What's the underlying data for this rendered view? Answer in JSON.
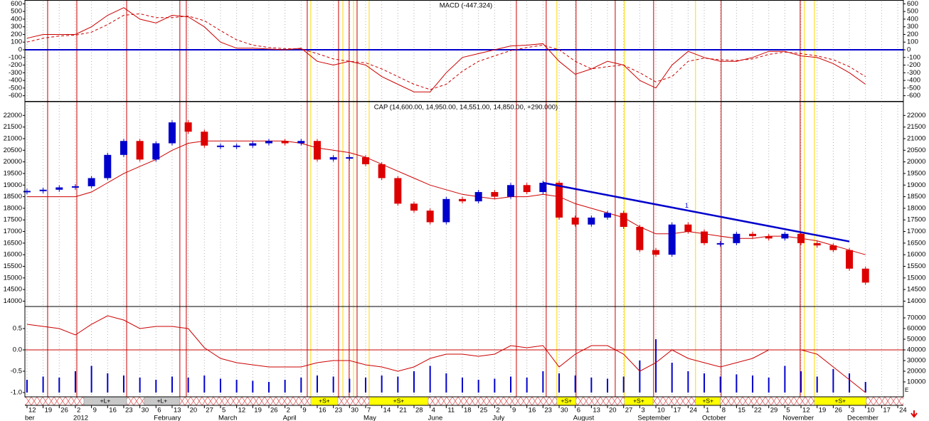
{
  "chart_data": [
    {
      "type": "line",
      "title": "MACD (-447.324)",
      "x": [
        0,
        1,
        2,
        3,
        4,
        5,
        6,
        7,
        8,
        9,
        10,
        11,
        12,
        13,
        14,
        15,
        16,
        17,
        18,
        19,
        20,
        21,
        22,
        23,
        24,
        25,
        26,
        27,
        28,
        29,
        30,
        31,
        32,
        33,
        34,
        35,
        36,
        37,
        38,
        39,
        40,
        41,
        42,
        43,
        44,
        45,
        46,
        47,
        48,
        49,
        50,
        51,
        52
      ],
      "series": [
        {
          "color": "#cc0000",
          "dash": false,
          "values": [
            150,
            200,
            200,
            200,
            300,
            450,
            550,
            400,
            350,
            450,
            430,
            300,
            100,
            20,
            20,
            10,
            0,
            20,
            -150,
            -200,
            -150,
            -200,
            -350,
            -450,
            -550,
            -550,
            -300,
            -100,
            -50,
            0,
            50,
            60,
            80,
            -150,
            -320,
            -250,
            -150,
            -200,
            -400,
            -500,
            -200,
            -20,
            -100,
            -150,
            -150,
            -100,
            -20,
            -20,
            -80,
            -100,
            -180,
            -300,
            -450
          ]
        },
        {
          "color": "#cc0000",
          "dash": true,
          "values": [
            100,
            150,
            180,
            190,
            230,
            330,
            450,
            470,
            420,
            420,
            440,
            380,
            250,
            130,
            60,
            30,
            15,
            10,
            -50,
            -120,
            -150,
            -170,
            -250,
            -350,
            -450,
            -520,
            -450,
            -280,
            -150,
            -80,
            -10,
            30,
            60,
            0,
            -150,
            -250,
            -220,
            -200,
            -300,
            -420,
            -350,
            -150,
            -110,
            -130,
            -140,
            -120,
            -60,
            -30,
            -50,
            -80,
            -130,
            -220,
            -350
          ]
        }
      ],
      "reference": {
        "value": 0,
        "color": "#0000cc"
      },
      "xlim": [
        -0.13,
        54.35
      ],
      "ylim": [
        -650,
        650
      ],
      "yticks": [
        -600,
        -500,
        -400,
        -300,
        -200,
        -100,
        0,
        100,
        200,
        300,
        400,
        500,
        600
      ]
    },
    {
      "type": "candlestick",
      "title": "CAP (14,600.00, 14,950.00, 14,551.00, 14,850.00, +290.000)",
      "x": [
        0,
        1,
        2,
        3,
        4,
        5,
        6,
        7,
        8,
        9,
        10,
        11,
        12,
        13,
        14,
        15,
        16,
        17,
        18,
        19,
        20,
        21,
        22,
        23,
        24,
        25,
        26,
        27,
        28,
        29,
        30,
        31,
        32,
        33,
        34,
        35,
        36,
        37,
        38,
        39,
        40,
        41,
        42,
        43,
        44,
        45,
        46,
        47,
        48,
        49,
        50,
        51,
        52
      ],
      "values": [
        18750,
        18800,
        18900,
        18950,
        19300,
        20300,
        20900,
        20100,
        20800,
        21700,
        21300,
        20700,
        20700,
        20700,
        20800,
        20900,
        20800,
        20900,
        20100,
        20200,
        20200,
        19900,
        19300,
        18200,
        17900,
        17400,
        18400,
        18300,
        18700,
        18500,
        19000,
        18700,
        19100,
        17600,
        17300,
        17600,
        17800,
        17200,
        16200,
        16000,
        17300,
        17000,
        16500,
        16500,
        16900,
        16800,
        16700,
        16900,
        16500,
        16400,
        16200,
        15400,
        14800
      ],
      "up_color": "#0000cc",
      "down_color": "#dd0000",
      "series": [
        {
          "color": "#cc0000",
          "values": [
            18500,
            18500,
            18500,
            18500,
            18700,
            19100,
            19500,
            19800,
            20100,
            20500,
            20800,
            20900,
            20900,
            20900,
            20900,
            20900,
            20900,
            20800,
            20600,
            20500,
            20400,
            20200,
            19900,
            19600,
            19300,
            19000,
            18800,
            18600,
            18500,
            18400,
            18500,
            18500,
            18600,
            18500,
            18200,
            18000,
            17800,
            17600,
            17200,
            16900,
            16900,
            17000,
            16900,
            16800,
            16700,
            16700,
            16800,
            16800,
            16700,
            16600,
            16400,
            16200,
            16000
          ]
        }
      ],
      "trendline": {
        "color": "#0000cc",
        "x": [
          32,
          51
        ],
        "values": [
          19100,
          16570
        ]
      },
      "annotations": [
        {
          "text": "1",
          "x": 40.8,
          "y": 18100
        }
      ],
      "xlim": [
        -0.13,
        54.35
      ],
      "ylim": [
        13800,
        22500
      ],
      "yticks": [
        14000,
        14500,
        15000,
        15500,
        16000,
        16500,
        17000,
        17500,
        18000,
        18500,
        19000,
        19500,
        20000,
        20500,
        21000,
        21500,
        22000
      ]
    },
    {
      "type": "line",
      "x": [
        0,
        1,
        2,
        3,
        4,
        5,
        6,
        7,
        8,
        9,
        10,
        11,
        12,
        13,
        14,
        15,
        16,
        17,
        18,
        19,
        20,
        21,
        22,
        23,
        24,
        25,
        26,
        27,
        28,
        29,
        30,
        31,
        32,
        33,
        34,
        35,
        36,
        37,
        38,
        39,
        40,
        41,
        42,
        43,
        44,
        45,
        46,
        47,
        48,
        49,
        50,
        51,
        52
      ],
      "series": [
        {
          "color": "#0000cc",
          "kind": "bar",
          "axis": "y2",
          "values": [
            12000,
            15000,
            14000,
            20000,
            25000,
            18000,
            16000,
            14000,
            12000,
            15000,
            14000,
            16000,
            13000,
            12000,
            11000,
            10000,
            12000,
            14000,
            16000,
            15000,
            13000,
            14000,
            16000,
            15000,
            20000,
            25000,
            18000,
            14000,
            12000,
            13000,
            15000,
            14000,
            20000,
            18000,
            16000,
            14000,
            13000,
            15000,
            30000,
            50000,
            28000,
            20000,
            18000,
            15000,
            17000,
            16000,
            14000,
            25000,
            20000,
            15000,
            22000,
            18000,
            10000
          ]
        },
        {
          "color": "#cc0000",
          "kind": "line",
          "values": [
            0.6,
            0.55,
            0.5,
            0.35,
            0.6,
            0.8,
            0.7,
            0.5,
            0.55,
            0.55,
            0.5,
            0.05,
            -0.2,
            -0.3,
            -0.35,
            -0.4,
            -0.4,
            -0.4,
            -0.3,
            -0.25,
            -0.25,
            -0.35,
            -0.4,
            -0.5,
            -0.4,
            -0.2,
            -0.1,
            -0.1,
            -0.15,
            -0.1,
            0.1,
            0.05,
            0.1,
            -0.4,
            -0.1,
            0.1,
            0.1,
            -0.1,
            -0.5,
            -0.3,
            0,
            -0.2,
            -0.3,
            -0.4,
            -0.3,
            -0.2,
            0,
            0,
            0,
            -0.1,
            -0.4,
            -0.7,
            -1.0
          ]
        }
      ],
      "reference": {
        "value": 0,
        "color": "#cc0000"
      },
      "xlim": [
        -0.13,
        54.35
      ],
      "ylim": [
        -1.1,
        1.0
      ],
      "yticks": [
        {
          "value": -1.0,
          "label": "-1.0"
        },
        -0.5,
        {
          "value": 0,
          "label": "0.0"
        },
        0.5
      ],
      "y2lim": [
        -4000,
        80000
      ],
      "y2ticks": [
        10000,
        20000,
        30000,
        40000,
        50000,
        60000,
        70000
      ],
      "xticks": [
        {
          "value": 0,
          "label": "12"
        },
        {
          "value": 1,
          "label": "19"
        },
        {
          "value": 2,
          "label": "26"
        },
        {
          "value": 3,
          "label": "2"
        },
        {
          "value": 4,
          "label": "9"
        },
        {
          "value": 5,
          "label": "16"
        },
        {
          "value": 6,
          "label": "23"
        },
        {
          "value": 7,
          "label": "30"
        },
        {
          "value": 8,
          "label": "6"
        },
        {
          "value": 9,
          "label": "13"
        },
        {
          "value": 10,
          "label": "20"
        },
        {
          "value": 11,
          "label": "27"
        },
        {
          "value": 12,
          "label": "5"
        },
        {
          "value": 13,
          "label": "12"
        },
        {
          "value": 14,
          "label": "19"
        },
        {
          "value": 15,
          "label": "26"
        },
        {
          "value": 16,
          "label": "2"
        },
        {
          "value": 17,
          "label": "9"
        },
        {
          "value": 18,
          "label": "16"
        },
        {
          "value": 19,
          "label": "23"
        },
        {
          "value": 20,
          "label": "30"
        },
        {
          "value": 21,
          "label": "7"
        },
        {
          "value": 22,
          "label": "14"
        },
        {
          "value": 23,
          "label": "21"
        },
        {
          "value": 24,
          "label": "28"
        },
        {
          "value": 25,
          "label": "4"
        },
        {
          "value": 26,
          "label": "11"
        },
        {
          "value": 27,
          "label": "18"
        },
        {
          "value": 28,
          "label": "25"
        },
        {
          "value": 29,
          "label": "2"
        },
        {
          "value": 30,
          "label": "9"
        },
        {
          "value": 31,
          "label": "16"
        },
        {
          "value": 32,
          "label": "23"
        },
        {
          "value": 33,
          "label": "30"
        },
        {
          "value": 34,
          "label": "6"
        },
        {
          "value": 35,
          "label": "13"
        },
        {
          "value": 36,
          "label": "20"
        },
        {
          "value": 37,
          "label": "27"
        },
        {
          "value": 38,
          "label": "3"
        },
        {
          "value": 39,
          "label": "10"
        },
        {
          "value": 40,
          "label": "17"
        },
        {
          "value": 41,
          "label": "24"
        },
        {
          "value": 42,
          "label": "1"
        },
        {
          "value": 43,
          "label": "8"
        },
        {
          "value": 44,
          "label": "15"
        },
        {
          "value": 45,
          "label": "22"
        },
        {
          "value": 46,
          "label": "29"
        },
        {
          "value": 47,
          "label": "5"
        },
        {
          "value": 48,
          "label": "12"
        },
        {
          "value": 49,
          "label": "19"
        },
        {
          "value": 50,
          "label": "26"
        },
        {
          "value": 51,
          "label": "3"
        },
        {
          "value": 52,
          "label": "10"
        },
        {
          "value": 53,
          "label": "17"
        },
        {
          "value": 54,
          "label": "24"
        }
      ],
      "months": [
        {
          "value": 0,
          "label": "ber"
        },
        {
          "value": 3,
          "label": "2012"
        },
        {
          "value": 8,
          "label": "February"
        },
        {
          "value": 12,
          "label": "March"
        },
        {
          "value": 16,
          "label": "April"
        },
        {
          "value": 21,
          "label": "May"
        },
        {
          "value": 25,
          "label": "June"
        },
        {
          "value": 29,
          "label": "July"
        },
        {
          "value": 34,
          "label": "August"
        },
        {
          "value": 38,
          "label": "September"
        },
        {
          "value": 42,
          "label": "October"
        },
        {
          "value": 47,
          "label": "November"
        },
        {
          "value": 51,
          "label": "December"
        }
      ],
      "bands": [
        {
          "label": "+L+",
          "start": 3.53,
          "end": 6.18,
          "color": "#c8c8c8"
        },
        {
          "label": "+L+",
          "start": 7.28,
          "end": 9.48,
          "color": "#c8c8c8"
        },
        {
          "label": "+S+",
          "start": 17.6,
          "end": 19.28,
          "color": "#ffff00"
        },
        {
          "label": "+S+",
          "start": 21.22,
          "end": 24.88,
          "color": "#ffff00"
        },
        {
          "label": "+S+",
          "start": 32.86,
          "end": 34.05,
          "color": "#ffff00"
        },
        {
          "label": "+S+",
          "start": 37.05,
          "end": 38.82,
          "color": "#ffff00"
        },
        {
          "label": "+S+",
          "start": 41.46,
          "end": 43.0,
          "color": "#ffff00"
        },
        {
          "label": "+S+",
          "start": 48.83,
          "end": 52.05,
          "color": "#ffff00"
        }
      ]
    }
  ],
  "signals": [
    {
      "color": "#cc0000",
      "x": [
        1.28,
        3.09,
        6.18,
        9.48,
        9.88,
        17.38,
        19.32,
        19.98,
        20.47,
        30.35,
        32.2,
        34.05,
        36.48,
        38.86,
        43.05,
        47.95
      ]
    },
    {
      "color": "#ffd800",
      "x": [
        17.6,
        19.59,
        20.25,
        21.22,
        32.86,
        37.05,
        41.46,
        48.21,
        48.83
      ]
    }
  ]
}
